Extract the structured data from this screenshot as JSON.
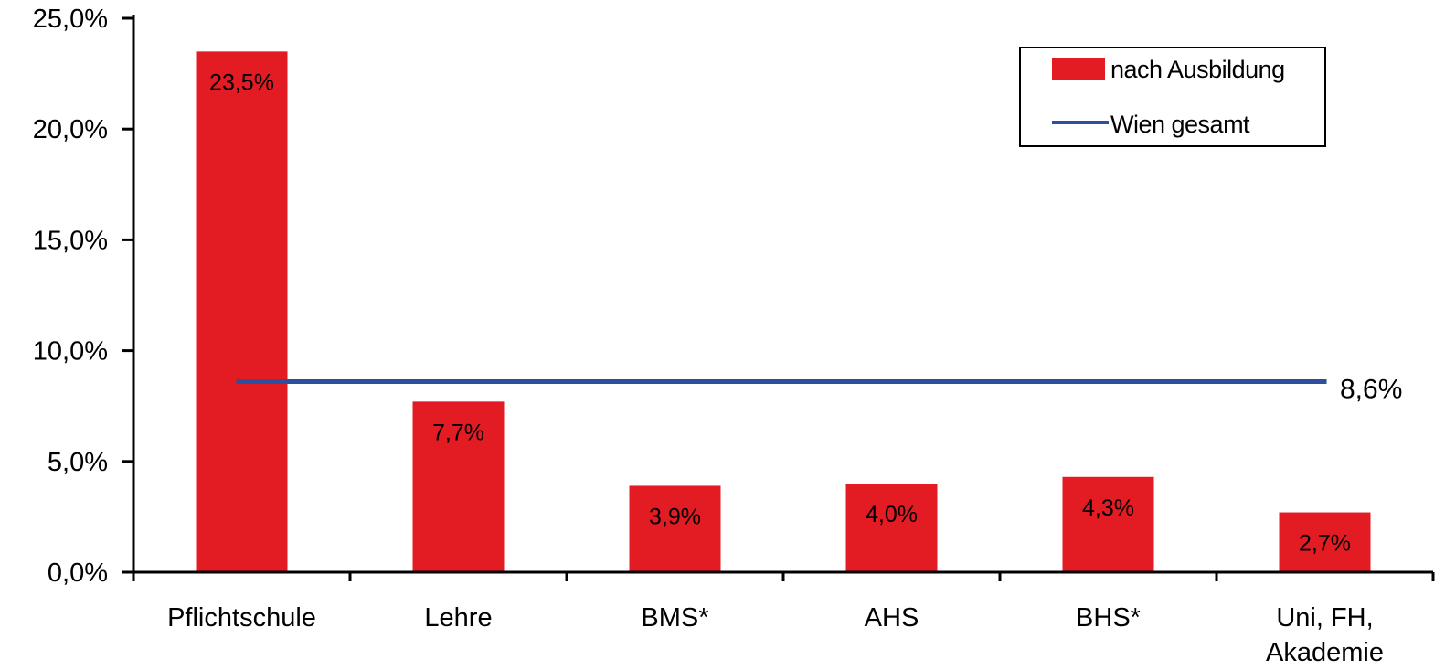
{
  "chart_data": {
    "type": "bar",
    "categories": [
      "Pflichtschule",
      "Lehre",
      "BMS*",
      "AHS",
      "BHS*",
      "Uni, FH, Akademie"
    ],
    "series": [
      {
        "name": "nach Ausbildung",
        "values": [
          23.5,
          7.7,
          3.9,
          4.0,
          4.3,
          2.7
        ],
        "labels": [
          "23,5%",
          "7,7%",
          "3,9%",
          "4,0%",
          "4,3%",
          "2,7%"
        ],
        "color": "#e31b23"
      }
    ],
    "reference_line": {
      "name": "Wien gesamt",
      "value": 8.6,
      "label": "8,6%",
      "color": "#2e4f9e"
    },
    "ylim": [
      0,
      25
    ],
    "yticks": [
      0,
      5,
      10,
      15,
      20,
      25
    ],
    "ytick_labels": [
      "0,0%",
      "5,0%",
      "10,0%",
      "15,0%",
      "20,0%",
      "25,0%"
    ],
    "grid": false,
    "legend_position": "top-right"
  }
}
